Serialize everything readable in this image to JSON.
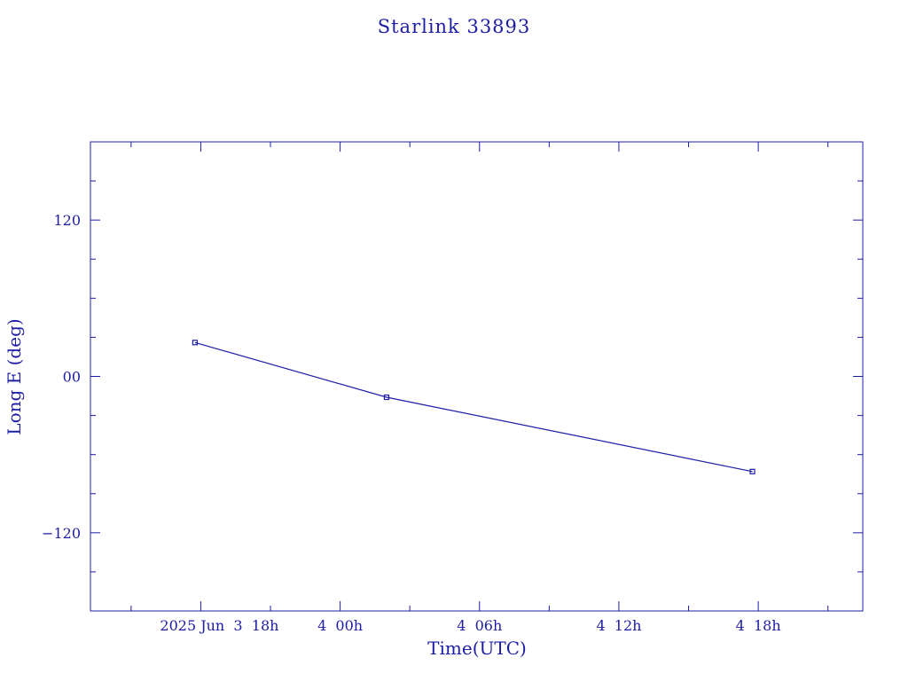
{
  "colors": {
    "ink": "#1c1ca6",
    "background": "#ffffff"
  },
  "chart_data": {
    "type": "line",
    "title": "Starlink 33893",
    "xlabel": "Time(UTC)",
    "ylabel": "Long E (deg)",
    "x_unit": "UTC datetime",
    "xlim": [
      "2025-06-03T13:15:00Z",
      "2025-06-04T22:30:00Z"
    ],
    "ylim": [
      -180,
      180
    ],
    "x_ticks": [
      {
        "value": "2025-06-03T18:00:00Z",
        "label": "2025 Jun  3  18h"
      },
      {
        "value": "2025-06-04T00:00:00Z",
        "label": "4  00h"
      },
      {
        "value": "2025-06-04T06:00:00Z",
        "label": "4  06h"
      },
      {
        "value": "2025-06-04T12:00:00Z",
        "label": "4  12h"
      },
      {
        "value": "2025-06-04T18:00:00Z",
        "label": "4  18h"
      }
    ],
    "x_minor_ticks": [
      "2025-06-03T15:00:00Z",
      "2025-06-03T21:00:00Z",
      "2025-06-04T03:00:00Z",
      "2025-06-04T09:00:00Z",
      "2025-06-04T15:00:00Z",
      "2025-06-04T21:00:00Z"
    ],
    "y_ticks": [
      {
        "value": 120,
        "label": "120"
      },
      {
        "value": 0,
        "label": "00"
      },
      {
        "value": -120,
        "label": "−120"
      }
    ],
    "y_minor_ticks": [
      -150,
      -90,
      -60,
      -30,
      30,
      60,
      90,
      150
    ],
    "grid": false,
    "series": [
      {
        "marker": "square",
        "x": [
          "2025-06-03T17:45:00Z",
          "2025-06-04T02:00:00Z",
          "2025-06-04T17:45:00Z"
        ],
        "y": [
          26,
          -16,
          -73
        ]
      }
    ]
  }
}
